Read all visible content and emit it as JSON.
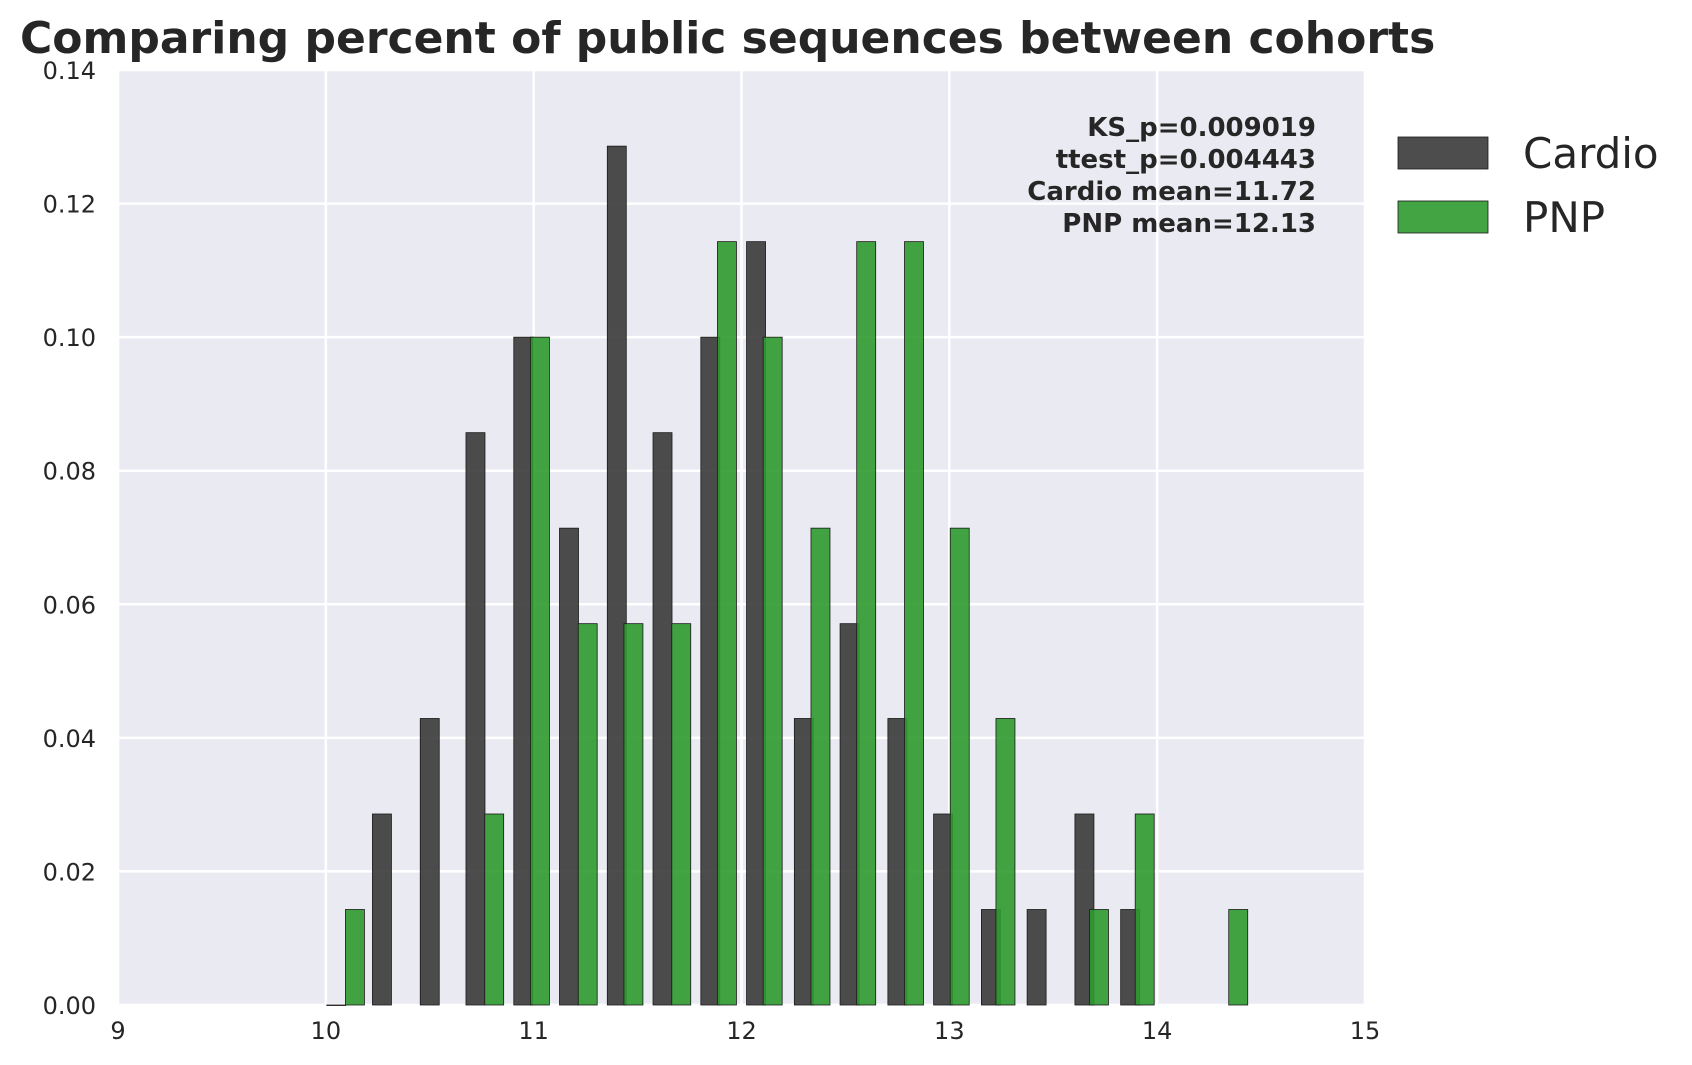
{
  "chart_data": {
    "type": "bar",
    "title": "Comparing percent of public sequences between cohorts",
    "xlabel": "",
    "ylabel": "",
    "xlim": [
      9,
      15
    ],
    "ylim": [
      0,
      0.14
    ],
    "x_ticks": [
      "9",
      "10",
      "11",
      "12",
      "13",
      "14",
      "15"
    ],
    "y_ticks": [
      "0.00",
      "0.02",
      "0.04",
      "0.06",
      "0.08",
      "0.10",
      "0.12",
      "0.14"
    ],
    "grid": true,
    "background": "#eaeaf2",
    "legend_position": "outside-right-top",
    "annotations": [
      "KS_p=0.009019",
      "ttest_p=0.004443",
      "Cardio mean=11.72",
      "PNP mean=12.13"
    ],
    "series": [
      {
        "name": "Cardio",
        "color": "#3a3a3a",
        "x": [
          10.05,
          10.27,
          10.5,
          10.72,
          10.95,
          11.17,
          11.4,
          11.62,
          11.85,
          12.07,
          12.3,
          12.52,
          12.75,
          12.97,
          13.2,
          13.42,
          13.65,
          13.87
        ],
        "values": [
          0.0,
          0.0286,
          0.0429,
          0.0857,
          0.1,
          0.0714,
          0.1286,
          0.0857,
          0.1,
          0.1143,
          0.0429,
          0.0571,
          0.0429,
          0.0286,
          0.0143,
          0.0143,
          0.0286,
          0.0143
        ]
      },
      {
        "name": "PNP",
        "color": "#2e9a2e",
        "x": [
          10.14,
          10.81,
          11.03,
          11.26,
          11.48,
          11.71,
          11.93,
          12.15,
          12.38,
          12.6,
          12.83,
          13.05,
          13.27,
          13.72,
          13.94,
          14.39
        ],
        "values": [
          0.0143,
          0.0286,
          0.1,
          0.0571,
          0.0571,
          0.0571,
          0.1143,
          0.1,
          0.0714,
          0.1143,
          0.1143,
          0.0714,
          0.0429,
          0.0143,
          0.0286,
          0.0143
        ]
      }
    ]
  }
}
